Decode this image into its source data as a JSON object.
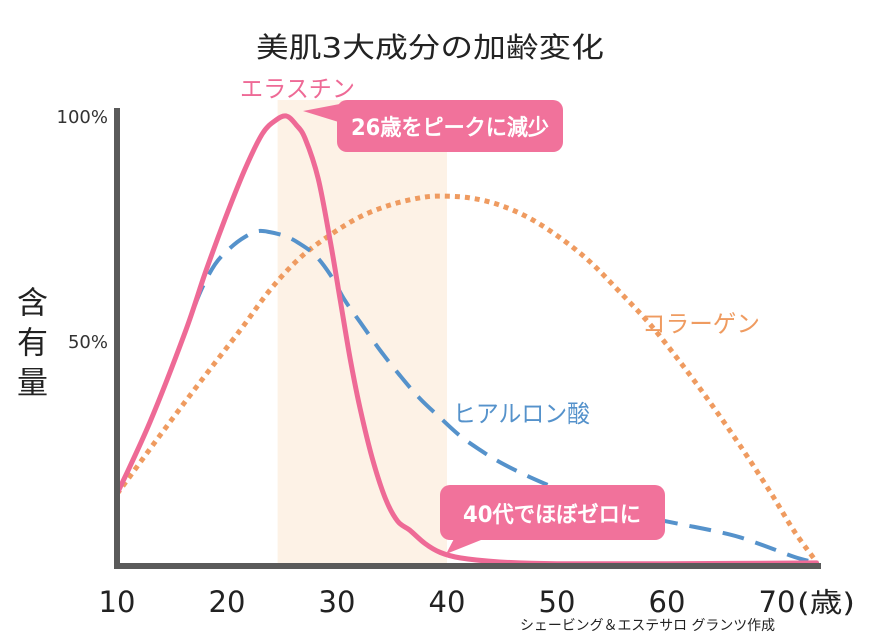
{
  "chart_data": {
    "type": "line",
    "title": "美肌3大成分の加齢変化",
    "xlabel": "(歳)",
    "ylabel": "含有量",
    "xlim": [
      10,
      74
    ],
    "ylim": [
      0,
      100
    ],
    "x_ticks": [
      10,
      20,
      30,
      40,
      50,
      60,
      70
    ],
    "y_ticks": [
      100,
      50
    ],
    "y_tick_labels": [
      "100%",
      "50%"
    ],
    "grid": false,
    "highlight_band": {
      "x": [
        24.6,
        40
      ],
      "color": "#fdf2e6"
    },
    "series": [
      {
        "name": "エラスチン",
        "color": "#ee6a96",
        "line_style": "solid",
        "x": [
          10,
          13,
          16.2,
          18,
          19.8,
          21.6,
          23.2,
          24.4,
          25.4,
          26.3,
          27.1,
          28.3,
          29.4,
          30.3,
          31.2,
          32.1,
          33.2,
          34.4,
          35.5,
          36.6,
          38,
          39.4,
          41.2,
          44.8,
          50,
          60,
          73.6
        ],
        "y": [
          16,
          32,
          52,
          65,
          77,
          88,
          96,
          99,
          100,
          98,
          95,
          86,
          72,
          59,
          46,
          35,
          24,
          15,
          10,
          8,
          5,
          3,
          1.8,
          0.9,
          0.5,
          0.5,
          0.7
        ]
      },
      {
        "name": "ヒアルロン酸",
        "color": "#5592cb",
        "line_style": "dashed",
        "x": [
          10,
          13,
          16.2,
          17.5,
          18.9,
          20.3,
          21.6,
          22.8,
          23.9,
          25.3,
          26.5,
          28,
          29.4,
          30.7,
          32.1,
          33.9,
          35.7,
          37.5,
          39.4,
          41.2,
          43,
          44.8,
          47.5,
          50.3,
          53,
          55.7,
          58.5,
          61.2,
          63.9,
          66.6,
          69.4,
          71.6,
          73.6
        ],
        "y": [
          16,
          32,
          52,
          60.5,
          67,
          70.7,
          73.1,
          74.4,
          74.2,
          73.3,
          71.8,
          69.1,
          64.7,
          59.1,
          54.2,
          48,
          42.4,
          37.3,
          32.9,
          28.9,
          25.8,
          23.1,
          19.8,
          16.9,
          14.7,
          12.4,
          10.7,
          9.3,
          8,
          6.4,
          4,
          2,
          0.7
        ]
      },
      {
        "name": "コラーゲン",
        "color": "#ef9b60",
        "line_style": "dotted",
        "x": [
          10,
          13.9,
          17.5,
          21.2,
          23.9,
          26.6,
          29.4,
          32.1,
          34.8,
          37.5,
          39.4,
          42.1,
          44.8,
          47.5,
          50.3,
          53,
          55.7,
          58.5,
          61.2,
          63.9,
          66.6,
          69.4,
          71.6,
          73.6
        ],
        "y": [
          16,
          29,
          40.7,
          52.4,
          61.3,
          68.4,
          73.6,
          77.6,
          80.2,
          81.8,
          82.2,
          81.8,
          80.2,
          77.3,
          72.9,
          67.6,
          60.9,
          53.6,
          45.3,
          36.4,
          26.9,
          16.4,
          7.6,
          0.9
        ]
      }
    ],
    "annotations": [
      {
        "text": "26歳をピークに減少",
        "color": "#f1729b"
      },
      {
        "text": "40代でほぼゼロに",
        "color": "#f1729b"
      }
    ]
  },
  "credit": "シェービング＆エステサロ グランツ作成"
}
